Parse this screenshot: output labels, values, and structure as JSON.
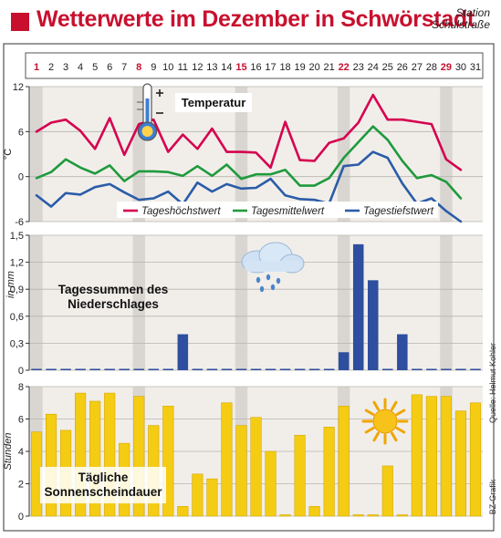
{
  "title": "Wetterwerte im Dezember in Schwörstadt",
  "station": {
    "line1": "Station",
    "line2": "Schulstraße"
  },
  "source_credit": "Quelle: Helmut Kohler",
  "graphic_credit": "BZ-Grafik",
  "colors": {
    "title_red": "#c8102e",
    "max_temp": "#d6004f",
    "mean_temp": "#1f9a3c",
    "min_temp": "#2b5ca8",
    "precip_bar": "#2e4f9f",
    "sun_bar": "#f5cc14",
    "panel_bg": "#f1eeea",
    "weekend_band": "#d9d6d2"
  },
  "icons": [
    "thermometer-icon",
    "rain-cloud-icon",
    "sun-icon"
  ],
  "chart_data": [
    {
      "type": "line",
      "title": "Temperatur",
      "ylabel": "°C",
      "ylim": [
        -6,
        12
      ],
      "yticks": [
        -6,
        0,
        6,
        12
      ],
      "grid": true,
      "legend_position": "bottom",
      "x": [
        "1",
        "2",
        "3",
        "4",
        "5",
        "6",
        "7",
        "8",
        "9",
        "10",
        "11",
        "12",
        "13",
        "14",
        "15",
        "16",
        "17",
        "18",
        "19",
        "20",
        "21",
        "22",
        "23",
        "24",
        "25",
        "26",
        "27",
        "28",
        "29",
        "30",
        "31"
      ],
      "highlight_days": [
        "1",
        "8",
        "15",
        "22",
        "29"
      ],
      "series": [
        {
          "name": "Tageshöchstwert",
          "color_key": "max_temp",
          "values": [
            6.0,
            7.2,
            7.6,
            6.1,
            3.7,
            7.8,
            2.9,
            7.0,
            7.6,
            3.3,
            5.6,
            3.7,
            6.4,
            3.3,
            3.3,
            3.2,
            1.2,
            7.3,
            2.2,
            2.1,
            4.5,
            5.1,
            7.2,
            10.9,
            7.6,
            7.6,
            7.3,
            7.0,
            2.3,
            0.9,
            null
          ]
        },
        {
          "name": "Tagesmittelwert",
          "color_key": "mean_temp",
          "values": [
            -0.2,
            0.6,
            2.3,
            1.2,
            0.4,
            1.5,
            -0.6,
            0.7,
            0.7,
            0.6,
            0.1,
            1.4,
            0.1,
            1.6,
            -0.3,
            0.3,
            0.3,
            0.9,
            -1.2,
            -1.2,
            -0.2,
            2.5,
            4.6,
            6.7,
            4.9,
            2.1,
            -0.2,
            0.2,
            -0.7,
            -2.9,
            null
          ]
        },
        {
          "name": "Tagestiefstwert",
          "color_key": "min_temp",
          "values": [
            -2.5,
            -4.0,
            -2.2,
            -2.4,
            -1.4,
            -1.0,
            -2.1,
            -3.1,
            -2.9,
            -2.0,
            -3.7,
            -0.8,
            -2.0,
            -1.0,
            -1.6,
            -1.5,
            -0.3,
            -2.5,
            -3.0,
            -3.1,
            -3.6,
            1.4,
            1.6,
            3.3,
            2.5,
            -0.9,
            -3.6,
            -2.9,
            -4.6,
            -6.0,
            null
          ]
        }
      ]
    },
    {
      "type": "bar",
      "title_lines": [
        "Tagessummen des",
        "Niederschlages"
      ],
      "ylabel": "in mm",
      "ylim": [
        0,
        1.5
      ],
      "yticks": [
        0,
        0.3,
        0.6,
        0.9,
        1.2,
        1.5
      ],
      "ytick_labels": [
        "0",
        "0,3",
        "0,6",
        "0,9",
        "1,2",
        "1,5"
      ],
      "categories": [
        "1",
        "2",
        "3",
        "4",
        "5",
        "6",
        "7",
        "8",
        "9",
        "10",
        "11",
        "12",
        "13",
        "14",
        "15",
        "16",
        "17",
        "18",
        "19",
        "20",
        "21",
        "22",
        "23",
        "24",
        "25",
        "26",
        "27",
        "28",
        "29",
        "30",
        "31"
      ],
      "values": [
        0,
        0,
        0,
        0,
        0,
        0,
        0,
        0,
        0,
        0,
        0.4,
        0,
        0,
        0,
        0,
        0,
        0,
        0,
        0,
        0,
        0,
        0.2,
        1.4,
        1.0,
        0,
        0.4,
        0,
        0,
        0,
        0,
        0
      ]
    },
    {
      "type": "bar",
      "title_lines": [
        "Tägliche",
        "Sonnenscheindauer"
      ],
      "ylabel": "Stunden",
      "ylim": [
        0,
        8
      ],
      "yticks": [
        0,
        2,
        4,
        6,
        8
      ],
      "categories": [
        "1",
        "2",
        "3",
        "4",
        "5",
        "6",
        "7",
        "8",
        "9",
        "10",
        "11",
        "12",
        "13",
        "14",
        "15",
        "16",
        "17",
        "18",
        "19",
        "20",
        "21",
        "22",
        "23",
        "24",
        "25",
        "26",
        "27",
        "28",
        "29",
        "30",
        "31"
      ],
      "values": [
        5.2,
        6.3,
        5.3,
        7.6,
        7.1,
        7.6,
        4.5,
        7.4,
        5.6,
        6.8,
        0.6,
        2.6,
        2.3,
        7.0,
        5.6,
        6.1,
        4.0,
        0,
        5.0,
        0.6,
        5.5,
        6.8,
        0,
        0,
        3.1,
        0,
        7.5,
        7.4,
        7.4,
        6.5,
        7.0
      ]
    }
  ]
}
